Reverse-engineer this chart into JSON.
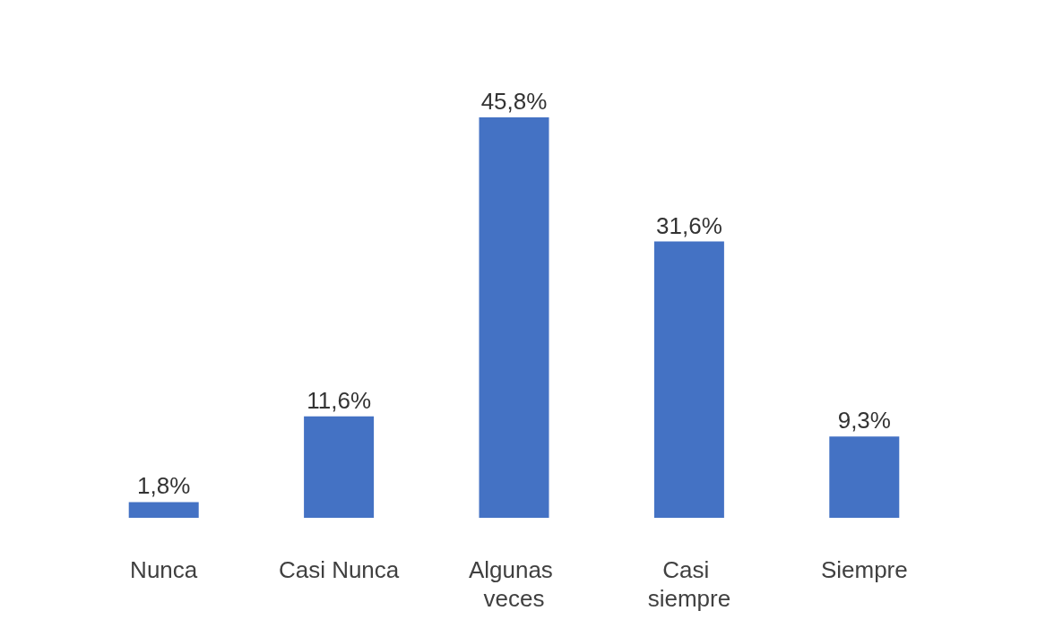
{
  "chart_data": {
    "type": "bar",
    "categories": [
      "Nunca",
      "Casi Nunca",
      "Algunas veces",
      "Casi siempre",
      "Siempre"
    ],
    "values": [
      1.8,
      11.6,
      45.8,
      31.6,
      9.3
    ],
    "value_labels": [
      "1,8%",
      "11,6%",
      "45,8%",
      "31,6%",
      "9,3%"
    ],
    "color": "#4472c4"
  }
}
